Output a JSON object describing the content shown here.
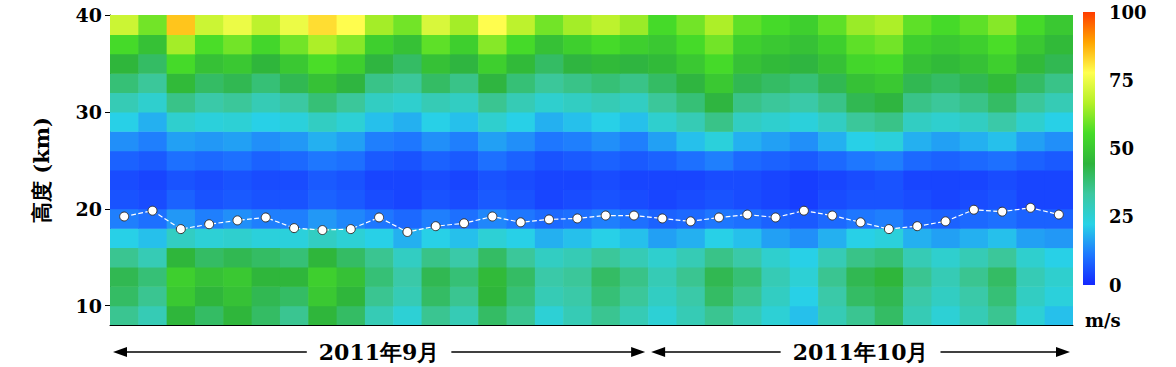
{
  "chart_data": {
    "type": "heatmap",
    "y_label": "高度 (km)",
    "ylim": [
      8,
      40
    ],
    "yticks": [
      10,
      20,
      30,
      40
    ],
    "tick_labels": "y",
    "categories": [
      null,
      null,
      null,
      null,
      null,
      null,
      null,
      null,
      null,
      null,
      null,
      null,
      null,
      null,
      null,
      null,
      null,
      null,
      null,
      null,
      null,
      null,
      null,
      null,
      null,
      null,
      null,
      null,
      null,
      null,
      null,
      null,
      null,
      null
    ],
    "months": [
      {
        "label": "2011年9月",
        "columns": 19
      },
      {
        "label": "2011年10月",
        "columns": 15
      }
    ],
    "height_bins": [
      8,
      10,
      12,
      14,
      16,
      18,
      20,
      22,
      24,
      26,
      28,
      30,
      32,
      34,
      36,
      38,
      40
    ],
    "cells": [
      [
        35,
        30,
        45,
        40,
        45,
        40,
        35,
        45,
        40,
        30,
        25,
        35,
        30,
        40,
        35,
        25,
        30,
        35,
        30,
        25,
        30,
        35,
        30,
        25,
        20,
        30,
        35,
        40,
        30,
        25,
        30,
        35,
        25,
        20
      ],
      [
        40,
        35,
        50,
        45,
        48,
        42,
        40,
        50,
        45,
        35,
        30,
        40,
        35,
        45,
        38,
        30,
        32,
        38,
        34,
        28,
        32,
        40,
        35,
        28,
        22,
        32,
        40,
        42,
        32,
        28,
        32,
        38,
        28,
        24
      ],
      [
        42,
        38,
        52,
        48,
        50,
        45,
        45,
        52,
        48,
        38,
        32,
        42,
        38,
        46,
        40,
        32,
        34,
        40,
        36,
        30,
        35,
        42,
        38,
        30,
        25,
        35,
        42,
        45,
        35,
        30,
        35,
        40,
        30,
        26
      ],
      [
        35,
        30,
        45,
        40,
        42,
        40,
        38,
        45,
        40,
        35,
        28,
        36,
        32,
        40,
        34,
        28,
        30,
        34,
        30,
        26,
        30,
        36,
        32,
        26,
        22,
        30,
        36,
        38,
        30,
        26,
        30,
        34,
        26,
        22
      ],
      [
        22,
        20,
        28,
        25,
        26,
        24,
        24,
        28,
        25,
        22,
        18,
        22,
        20,
        25,
        22,
        18,
        20,
        22,
        20,
        16,
        18,
        22,
        20,
        16,
        14,
        18,
        22,
        24,
        18,
        16,
        18,
        20,
        16,
        15
      ],
      [
        12,
        10,
        15,
        12,
        14,
        12,
        12,
        15,
        13,
        11,
        9,
        12,
        10,
        13,
        11,
        9,
        10,
        12,
        10,
        8,
        9,
        11,
        10,
        8,
        7,
        9,
        11,
        12,
        9,
        8,
        9,
        10,
        8,
        8
      ],
      [
        6,
        5,
        8,
        6,
        7,
        6,
        6,
        8,
        7,
        5,
        4,
        6,
        5,
        7,
        6,
        4,
        5,
        6,
        5,
        4,
        5,
        6,
        5,
        4,
        3,
        5,
        6,
        6,
        5,
        4,
        5,
        6,
        4,
        4
      ],
      [
        5,
        4,
        6,
        5,
        6,
        5,
        5,
        7,
        6,
        4,
        4,
        5,
        4,
        6,
        5,
        4,
        4,
        5,
        4,
        4,
        4,
        5,
        5,
        4,
        3,
        4,
        5,
        6,
        4,
        4,
        4,
        5,
        4,
        4
      ],
      [
        8,
        7,
        10,
        9,
        10,
        8,
        9,
        11,
        10,
        7,
        6,
        8,
        7,
        10,
        8,
        6,
        7,
        8,
        7,
        8,
        10,
        12,
        9,
        8,
        7,
        9,
        11,
        12,
        9,
        8,
        9,
        10,
        8,
        7
      ],
      [
        14,
        12,
        16,
        15,
        16,
        14,
        15,
        18,
        16,
        12,
        11,
        14,
        12,
        16,
        14,
        11,
        12,
        14,
        12,
        16,
        20,
        24,
        18,
        16,
        14,
        18,
        22,
        24,
        18,
        16,
        18,
        20,
        16,
        14
      ],
      [
        22,
        18,
        26,
        24,
        25,
        22,
        24,
        28,
        25,
        20,
        18,
        22,
        20,
        26,
        22,
        18,
        20,
        22,
        20,
        26,
        30,
        36,
        28,
        26,
        24,
        28,
        34,
        36,
        28,
        26,
        28,
        32,
        26,
        22
      ],
      [
        30,
        26,
        36,
        32,
        34,
        30,
        33,
        38,
        34,
        28,
        26,
        30,
        28,
        35,
        30,
        26,
        28,
        30,
        28,
        34,
        38,
        44,
        36,
        34,
        32,
        36,
        42,
        44,
        36,
        34,
        36,
        40,
        34,
        30
      ],
      [
        38,
        34,
        46,
        40,
        42,
        38,
        42,
        48,
        44,
        36,
        34,
        40,
        36,
        44,
        38,
        34,
        36,
        38,
        36,
        40,
        44,
        50,
        42,
        40,
        38,
        42,
        48,
        50,
        42,
        40,
        42,
        46,
        40,
        36
      ],
      [
        45,
        40,
        55,
        48,
        50,
        45,
        50,
        56,
        52,
        44,
        40,
        48,
        44,
        52,
        46,
        40,
        44,
        46,
        44,
        46,
        50,
        55,
        48,
        46,
        44,
        48,
        54,
        55,
        48,
        46,
        48,
        52,
        46,
        42
      ],
      [
        55,
        48,
        65,
        56,
        60,
        54,
        60,
        66,
        62,
        52,
        48,
        58,
        52,
        62,
        55,
        48,
        52,
        55,
        52,
        50,
        55,
        60,
        52,
        50,
        48,
        52,
        58,
        60,
        52,
        50,
        52,
        56,
        50,
        46
      ],
      [
        70,
        60,
        85,
        70,
        75,
        68,
        75,
        82,
        78,
        65,
        60,
        72,
        65,
        78,
        68,
        60,
        65,
        68,
        64,
        55,
        60,
        66,
        58,
        55,
        52,
        58,
        64,
        66,
        58,
        55,
        58,
        62,
        55,
        50
      ]
    ],
    "colorbar": {
      "label": "m/s",
      "range": [
        0,
        100
      ],
      "ticks": [
        0,
        25,
        50,
        75,
        100
      ],
      "colors": [
        "#1428ff",
        "#1e78ff",
        "#28d2e6",
        "#3cc8a0",
        "#2eb43c",
        "#46dc28",
        "#b4f028",
        "#ffff50",
        "#ffa500",
        "#ff3c00"
      ]
    },
    "tropopause": {
      "values": [
        19.2,
        19.8,
        17.9,
        18.4,
        18.8,
        19.1,
        18.0,
        17.8,
        17.9,
        19.1,
        17.6,
        18.2,
        18.5,
        19.2,
        18.6,
        18.9,
        19.0,
        19.3,
        19.3,
        19.0,
        18.7,
        19.1,
        19.4,
        19.1,
        19.8,
        19.3,
        18.6,
        17.9,
        18.2,
        18.7,
        19.9,
        19.7,
        20.1,
        19.4
      ],
      "color": "#ffffff",
      "marker": "circle",
      "line_style": "dashed"
    }
  }
}
